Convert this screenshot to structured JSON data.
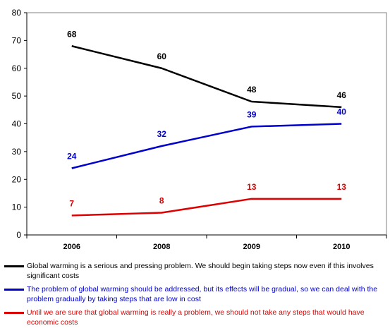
{
  "chart_data": {
    "type": "line",
    "categories": [
      "2006",
      "2008",
      "2009",
      "2010"
    ],
    "ylim": [
      0,
      80
    ],
    "yticks": [
      0,
      10,
      20,
      30,
      40,
      50,
      60,
      70,
      80
    ],
    "grid": false,
    "legend_position": "bottom",
    "series": [
      {
        "name": "Global warming is a serious and pressing problem. We should begin taking steps now even if this involves significant costs",
        "color": "#000000",
        "values": [
          68,
          60,
          48,
          46
        ],
        "labels": [
          "68",
          "60",
          "48",
          "46"
        ]
      },
      {
        "name": "The problem of global warming should be addressed, but its effects will be gradual, so we can deal with the problem gradually by taking steps that are low in cost",
        "color": "#0000CC",
        "values": [
          24,
          32,
          39,
          40
        ],
        "labels": [
          "24",
          "32",
          "39",
          "40"
        ]
      },
      {
        "name": "Until we are sure that global warming is really a problem, we should not take any steps that would have economic costs",
        "color": "#DD0000",
        "values": [
          7,
          8,
          13,
          13
        ],
        "labels": [
          "7",
          "8",
          "13",
          "13"
        ]
      }
    ]
  }
}
